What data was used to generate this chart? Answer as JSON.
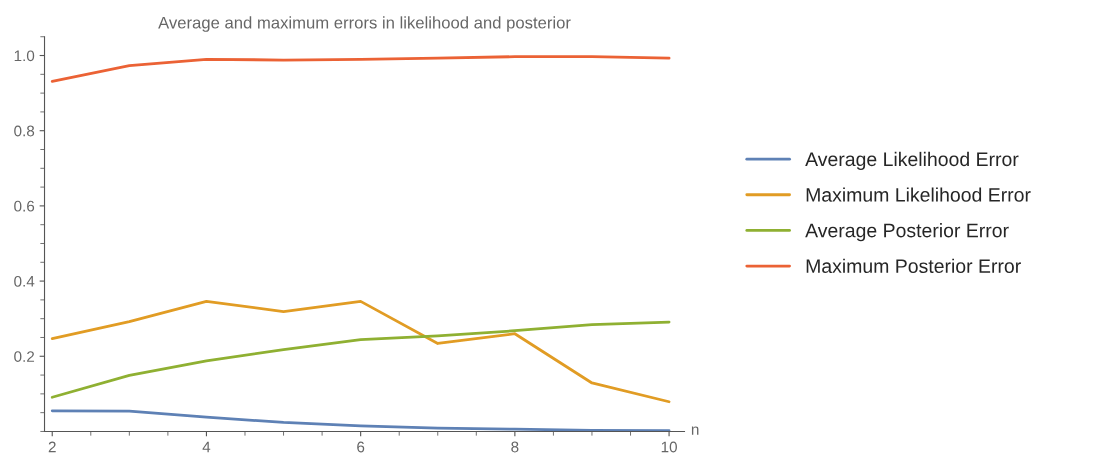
{
  "chart_data": {
    "type": "line",
    "title": "Average and maximum errors in likelihood and posterior",
    "xlabel": "n",
    "x": [
      2,
      3,
      4,
      5,
      6,
      7,
      8,
      9,
      10
    ],
    "series": [
      {
        "name": "Average Likelihood Error",
        "color": "#5e81b5",
        "values": [
          0.055,
          0.054,
          0.038,
          0.024,
          0.015,
          0.009,
          0.006,
          0.003,
          0.002
        ]
      },
      {
        "name": "Maximum Likelihood Error",
        "color": "#e19c24",
        "values": [
          0.247,
          0.292,
          0.346,
          0.319,
          0.346,
          0.234,
          0.26,
          0.129,
          0.079
        ]
      },
      {
        "name": "Average Posterior Error",
        "color": "#8fb032",
        "values": [
          0.091,
          0.149,
          0.188,
          0.218,
          0.244,
          0.254,
          0.268,
          0.284,
          0.291
        ]
      },
      {
        "name": "Maximum Posterior Error",
        "color": "#eb6235",
        "values": [
          0.931,
          0.973,
          0.99,
          0.988,
          0.99,
          0.993,
          0.997,
          0.997,
          0.993
        ]
      }
    ],
    "xlim": [
      1.9,
      10.2
    ],
    "ylim": [
      0,
      1.05
    ],
    "xticks": [
      2,
      4,
      6,
      8,
      10
    ],
    "yticks": [
      0.2,
      0.4,
      0.6,
      0.8,
      {
        "value": 1.0,
        "label": "1.0"
      }
    ],
    "legend": "right",
    "grid": false,
    "marker": "none",
    "line_style": "solid"
  }
}
